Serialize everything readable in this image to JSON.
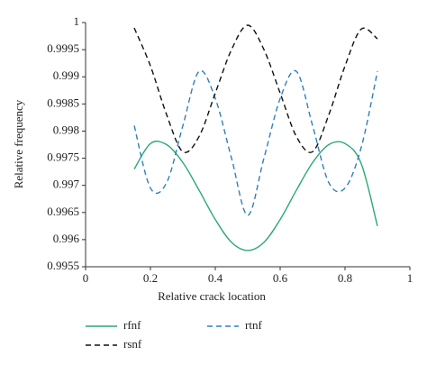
{
  "chart_data": {
    "type": "line",
    "x_label": "Relative crack location",
    "y_label": "Relative frequency",
    "x": [
      0.15,
      0.2,
      0.25,
      0.3,
      0.35,
      0.4,
      0.45,
      0.5,
      0.55,
      0.6,
      0.65,
      0.7,
      0.75,
      0.8,
      0.85,
      0.9
    ],
    "series": [
      {
        "name": "rfnf",
        "color": "#2aa876",
        "style": "solid",
        "values": [
          0.9973,
          0.99777,
          0.99775,
          0.99742,
          0.99691,
          0.99637,
          0.99595,
          0.9958,
          0.99595,
          0.99637,
          0.99691,
          0.99742,
          0.99775,
          0.99777,
          0.9974,
          0.99625
        ]
      },
      {
        "name": "rtnf",
        "color": "#2e7fbf",
        "style": "dashed",
        "values": [
          0.9981,
          0.99695,
          0.99705,
          0.9981,
          0.9991,
          0.9986,
          0.9975,
          0.99645,
          0.9975,
          0.9986,
          0.9991,
          0.9981,
          0.99705,
          0.99695,
          0.9977,
          0.9991
        ]
      },
      {
        "name": "rsnf",
        "color": "#111111",
        "style": "dashed",
        "values": [
          0.9999,
          0.9992,
          0.9983,
          0.99762,
          0.9979,
          0.9987,
          0.9995,
          0.99995,
          0.9995,
          0.9987,
          0.9979,
          0.99762,
          0.9983,
          0.9992,
          0.99988,
          0.9997
        ]
      }
    ],
    "xlim": [
      0,
      1
    ],
    "xticks": [
      0,
      0.2,
      0.4,
      0.6,
      0.8,
      1
    ],
    "ylim": [
      0.9955,
      1
    ],
    "yticks": [
      0.9955,
      0.996,
      0.9965,
      0.997,
      0.9975,
      0.998,
      0.9985,
      0.999,
      0.9995,
      1
    ],
    "grid": false
  }
}
